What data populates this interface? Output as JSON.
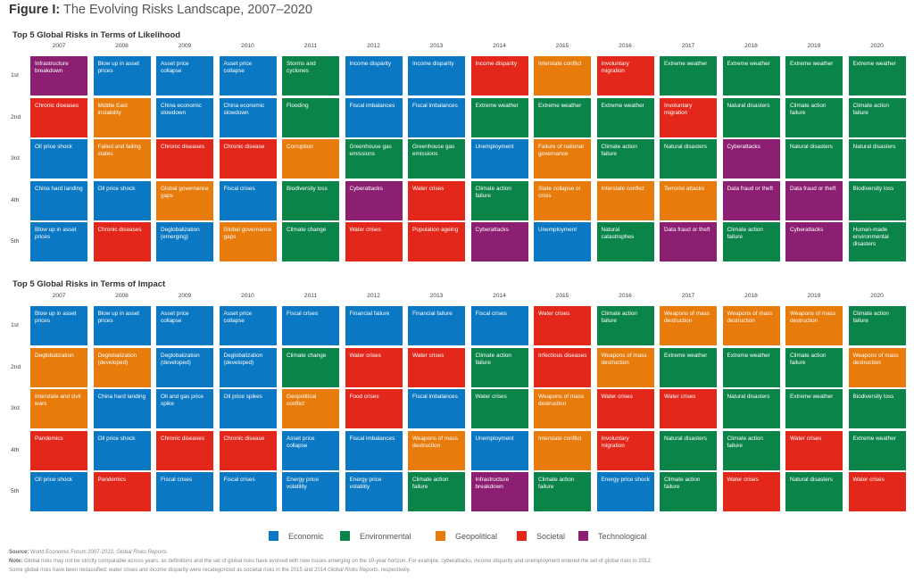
{
  "figure": {
    "title_prefix": "Figure I:",
    "title_text": "The Evolving Risks Landscape, 2007–2020"
  },
  "categories": {
    "economic": {
      "label": "Economic",
      "color": "#0a78c2"
    },
    "environmental": {
      "label": "Environmental",
      "color": "#0b8449"
    },
    "geopolitical": {
      "label": "Geopolitical",
      "color": "#e77b0b"
    },
    "societal": {
      "label": "Societal",
      "color": "#e3271a"
    },
    "technological": {
      "label": "Technological",
      "color": "#8c1f72"
    }
  },
  "legend": [
    "economic",
    "environmental",
    "geopolitical",
    "societal",
    "technological"
  ],
  "ranks": [
    "1st",
    "2nd",
    "3rd",
    "4th",
    "5th"
  ],
  "chart_data": [
    {
      "type": "table",
      "title": "Top 5 Global Risks in Terms of Likelihood",
      "years": [
        "2007",
        "2008",
        "2009",
        "2010",
        "2011",
        "2012",
        "2013",
        "2014",
        "2015",
        "2016",
        "2017",
        "2018",
        "2019",
        "2020"
      ],
      "columns": [
        [
          [
            "Infrastructure breakdown",
            "technological"
          ],
          [
            "Chronic diseases",
            "societal"
          ],
          [
            "Oil price shock",
            "economic"
          ],
          [
            "China hard landing",
            "economic"
          ],
          [
            "Blow up in asset prices",
            "economic"
          ]
        ],
        [
          [
            "Blow up in asset prices",
            "economic"
          ],
          [
            "Middle East instability",
            "geopolitical"
          ],
          [
            "Failed and failing states",
            "geopolitical"
          ],
          [
            "Oil price shock",
            "economic"
          ],
          [
            "Chronic diseases",
            "societal"
          ]
        ],
        [
          [
            "Asset price collapse",
            "economic"
          ],
          [
            "China economic slowdown",
            "economic"
          ],
          [
            "Chronic diseases",
            "societal"
          ],
          [
            "Global governance gaps",
            "geopolitical"
          ],
          [
            "Deglobalization (emerging)",
            "economic"
          ]
        ],
        [
          [
            "Asset price collapse",
            "economic"
          ],
          [
            "China economic slowdown",
            "economic"
          ],
          [
            "Chronic disease",
            "societal"
          ],
          [
            "Fiscal crises",
            "economic"
          ],
          [
            "Global governance gaps",
            "geopolitical"
          ]
        ],
        [
          [
            "Storms and cyclones",
            "environmental"
          ],
          [
            "Flooding",
            "environmental"
          ],
          [
            "Corruption",
            "geopolitical"
          ],
          [
            "Biodiversity loss",
            "environmental"
          ],
          [
            "Climate change",
            "environmental"
          ]
        ],
        [
          [
            "Income disparity",
            "economic"
          ],
          [
            "Fiscal imbalances",
            "economic"
          ],
          [
            "Greenhouse gas emissions",
            "environmental"
          ],
          [
            "Cyberattacks",
            "technological"
          ],
          [
            "Water crises",
            "societal"
          ]
        ],
        [
          [
            "Income disparity",
            "economic"
          ],
          [
            "Fiscal imbalances",
            "economic"
          ],
          [
            "Greenhouse gas emissions",
            "environmental"
          ],
          [
            "Water crises",
            "societal"
          ],
          [
            "Population ageing",
            "societal"
          ]
        ],
        [
          [
            "Income disparity",
            "societal"
          ],
          [
            "Extreme weather",
            "environmental"
          ],
          [
            "Unemployment",
            "economic"
          ],
          [
            "Climate action failure",
            "environmental"
          ],
          [
            "Cyberattacks",
            "technological"
          ]
        ],
        [
          [
            "Interstate conflict",
            "geopolitical"
          ],
          [
            "Extreme weather",
            "environmental"
          ],
          [
            "Failure of national governance",
            "geopolitical"
          ],
          [
            "State collapse or crisis",
            "geopolitical"
          ],
          [
            "Unemployment",
            "economic"
          ]
        ],
        [
          [
            "Involuntary migration",
            "societal"
          ],
          [
            "Extreme weather",
            "environmental"
          ],
          [
            "Climate action failure",
            "environmental"
          ],
          [
            "Interstate conflict",
            "geopolitical"
          ],
          [
            "Natural catastrophes",
            "environmental"
          ]
        ],
        [
          [
            "Extreme weather",
            "environmental"
          ],
          [
            "Involuntary migration",
            "societal"
          ],
          [
            "Natural disasters",
            "environmental"
          ],
          [
            "Terrorist attacks",
            "geopolitical"
          ],
          [
            "Data fraud or theft",
            "technological"
          ]
        ],
        [
          [
            "Extreme weather",
            "environmental"
          ],
          [
            "Natural disasters",
            "environmental"
          ],
          [
            "Cyberattacks",
            "technological"
          ],
          [
            "Data fraud or theft",
            "technological"
          ],
          [
            "Climate action failure",
            "environmental"
          ]
        ],
        [
          [
            "Extreme weather",
            "environmental"
          ],
          [
            "Climate action failure",
            "environmental"
          ],
          [
            "Natural disasters",
            "environmental"
          ],
          [
            "Data fraud or theft",
            "technological"
          ],
          [
            "Cyberattacks",
            "technological"
          ]
        ],
        [
          [
            "Extreme weather",
            "environmental"
          ],
          [
            "Climate action failure",
            "environmental"
          ],
          [
            "Natural disasters",
            "environmental"
          ],
          [
            "Biodiversity loss",
            "environmental"
          ],
          [
            "Human-made environmental disasters",
            "environmental"
          ]
        ]
      ]
    },
    {
      "type": "table",
      "title": "Top 5 Global Risks in Terms of Impact",
      "years": [
        "2007",
        "2008",
        "2009",
        "2010",
        "2011",
        "2012",
        "2013",
        "2014",
        "2015",
        "2016",
        "2017",
        "2018",
        "2019",
        "2020"
      ],
      "columns": [
        [
          [
            "Blow up in asset prices",
            "economic"
          ],
          [
            "Deglobalization",
            "geopolitical"
          ],
          [
            "Interstate and civil wars",
            "geopolitical"
          ],
          [
            "Pandemics",
            "societal"
          ],
          [
            "Oil price shock",
            "economic"
          ]
        ],
        [
          [
            "Blow up in asset prices",
            "economic"
          ],
          [
            "Deglobalization (developed)",
            "geopolitical"
          ],
          [
            "China hard landing",
            "economic"
          ],
          [
            "Oil price shock",
            "economic"
          ],
          [
            "Pandemics",
            "societal"
          ]
        ],
        [
          [
            "Asset price collapse",
            "economic"
          ],
          [
            "Deglobalization (developed)",
            "economic"
          ],
          [
            "Oil and gas price spike",
            "economic"
          ],
          [
            "Chronic diseases",
            "societal"
          ],
          [
            "Fiscal crises",
            "economic"
          ]
        ],
        [
          [
            "Asset price collapse",
            "economic"
          ],
          [
            "Deglobalization (developed)",
            "economic"
          ],
          [
            "Oil price spikes",
            "economic"
          ],
          [
            "Chronic disease",
            "societal"
          ],
          [
            "Fiscal crises",
            "economic"
          ]
        ],
        [
          [
            "Fiscal crises",
            "economic"
          ],
          [
            "Climate change",
            "environmental"
          ],
          [
            "Geopolitical conflict",
            "geopolitical"
          ],
          [
            "Asset price collapse",
            "economic"
          ],
          [
            "Energy price volatility",
            "economic"
          ]
        ],
        [
          [
            "Financial failure",
            "economic"
          ],
          [
            "Water crises",
            "societal"
          ],
          [
            "Food crises",
            "societal"
          ],
          [
            "Fiscal imbalances",
            "economic"
          ],
          [
            "Energy price volatility",
            "economic"
          ]
        ],
        [
          [
            "Financial failure",
            "economic"
          ],
          [
            "Water crises",
            "societal"
          ],
          [
            "Fiscal imbalances",
            "economic"
          ],
          [
            "Weapons of mass destruction",
            "geopolitical"
          ],
          [
            "Climate action failure",
            "environmental"
          ]
        ],
        [
          [
            "Fiscal crises",
            "economic"
          ],
          [
            "Climate action failure",
            "environmental"
          ],
          [
            "Water crises",
            "environmental"
          ],
          [
            "Unemployment",
            "economic"
          ],
          [
            "Infrastructure breakdown",
            "technological"
          ]
        ],
        [
          [
            "Water crises",
            "societal"
          ],
          [
            "Infectious diseases",
            "societal"
          ],
          [
            "Weapons of mass destruction",
            "geopolitical"
          ],
          [
            "Interstate conflict",
            "geopolitical"
          ],
          [
            "Climate action failure",
            "environmental"
          ]
        ],
        [
          [
            "Climate action failure",
            "environmental"
          ],
          [
            "Weapons of mass destruction",
            "geopolitical"
          ],
          [
            "Water crises",
            "societal"
          ],
          [
            "Involuntary migration",
            "societal"
          ],
          [
            "Energy price shock",
            "economic"
          ]
        ],
        [
          [
            "Weapons of mass destruction",
            "geopolitical"
          ],
          [
            "Extreme weather",
            "environmental"
          ],
          [
            "Water crises",
            "societal"
          ],
          [
            "Natural disasters",
            "environmental"
          ],
          [
            "Climate action failure",
            "environmental"
          ]
        ],
        [
          [
            "Weapons of mass destruction",
            "geopolitical"
          ],
          [
            "Extreme weather",
            "environmental"
          ],
          [
            "Natural disasters",
            "environmental"
          ],
          [
            "Climate action failure",
            "environmental"
          ],
          [
            "Water crises",
            "societal"
          ]
        ],
        [
          [
            "Weapons of mass destruction",
            "geopolitical"
          ],
          [
            "Climate action failure",
            "environmental"
          ],
          [
            "Extreme weather",
            "environmental"
          ],
          [
            "Water crises",
            "societal"
          ],
          [
            "Natural disasters",
            "environmental"
          ]
        ],
        [
          [
            "Climate action failure",
            "environmental"
          ],
          [
            "Weapons of mass destruction",
            "geopolitical"
          ],
          [
            "Biodiversity loss",
            "environmental"
          ],
          [
            "Extreme weather",
            "environmental"
          ],
          [
            "Water crises",
            "societal"
          ]
        ]
      ]
    }
  ],
  "footer": {
    "source_label": "Source:",
    "source_text": "World Economic Forum 2007-2020,",
    "source_italic": "Global Risks Reports.",
    "note_label": "Note:",
    "note_text": "Global risks may not be strictly comparable across years, as definitions and the set of global risks have evolved with new issues emerging on the 10-year horizon. For example, cyberattacks, income disparity and unemployment entered the set of global risks in 2012.",
    "note2_text": "Some global risks have been reclassified: water crises and income disparity were recategorized as societal risks in the 2015 and 2014",
    "note2_italic": "Global Risks Reports",
    "note2_end": ", respectively."
  }
}
